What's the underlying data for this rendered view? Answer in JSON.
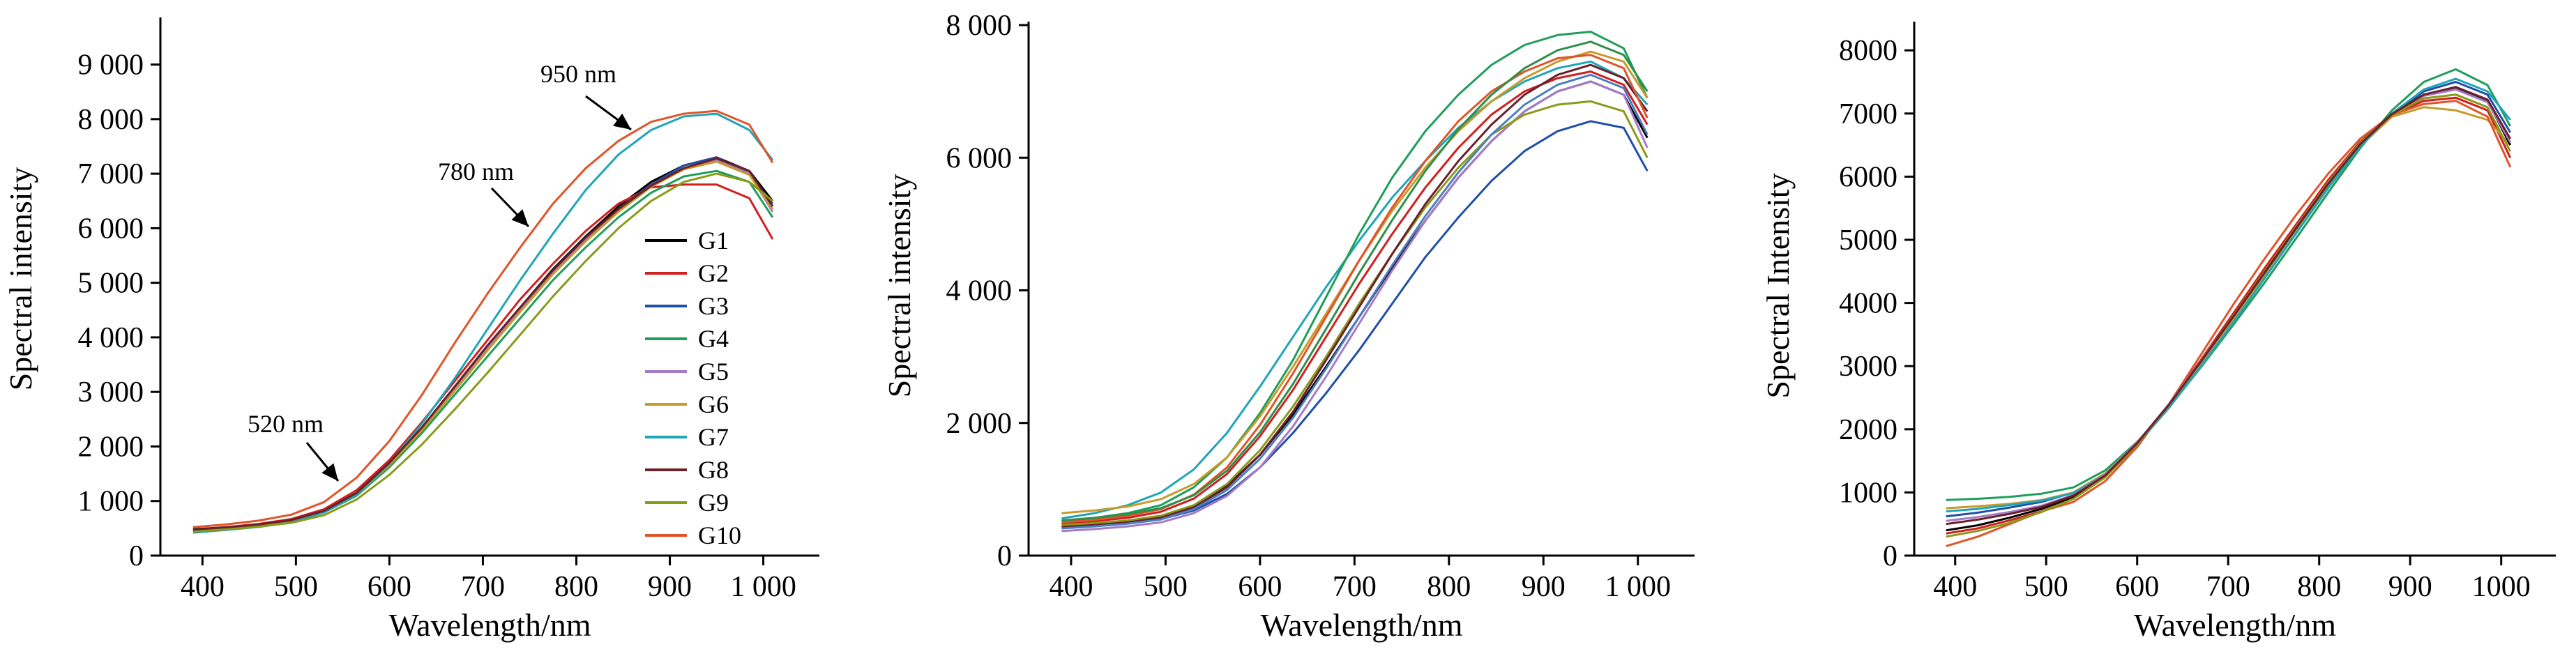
{
  "chart_data": [
    {
      "type": "line",
      "xlabel": "Wavelength/nm",
      "ylabel": "Spectral intensity",
      "xlim": [
        355,
        1060
      ],
      "ylim": [
        0,
        9800
      ],
      "x_ticks": [
        400,
        500,
        600,
        700,
        800,
        900,
        1000
      ],
      "x_tick_labels": [
        "400",
        "500",
        "600",
        "700",
        "800",
        "900",
        "1 000"
      ],
      "y_ticks": [
        0,
        1000,
        2000,
        3000,
        4000,
        5000,
        6000,
        7000,
        8000,
        9000
      ],
      "y_tick_labels": [
        "0",
        "1 000",
        "2 000",
        "3 000",
        "4 000",
        "5 000",
        "6 000",
        "7 000",
        "8 000",
        "9 000"
      ],
      "legend_position": "right",
      "grid": false,
      "annotations": [
        {
          "text": "950 nm",
          "x": 865,
          "y": 8100
        },
        {
          "text": "780 nm",
          "x": 760,
          "y": 6250
        },
        {
          "text": "520 nm",
          "x": 540,
          "y": 1350
        }
      ],
      "x": [
        390,
        425,
        460,
        495,
        530,
        565,
        600,
        635,
        670,
        705,
        740,
        775,
        810,
        845,
        880,
        915,
        950,
        985,
        1010
      ],
      "series": [
        {
          "name": "G1",
          "color": "#000000",
          "values": [
            480,
            520,
            570,
            650,
            820,
            1150,
            1700,
            2350,
            3100,
            3850,
            4550,
            5250,
            5850,
            6400,
            6850,
            7150,
            7300,
            7050,
            6500
          ]
        },
        {
          "name": "G2",
          "color": "#d11f1f",
          "values": [
            470,
            520,
            580,
            670,
            850,
            1200,
            1750,
            2450,
            3200,
            3950,
            4700,
            5350,
            5950,
            6450,
            6750,
            6800,
            6800,
            6550,
            5800
          ]
        },
        {
          "name": "G3",
          "color": "#1f4fa8",
          "values": [
            460,
            505,
            560,
            640,
            810,
            1130,
            1680,
            2330,
            3050,
            3800,
            4500,
            5200,
            5800,
            6350,
            6800,
            7150,
            7300,
            7000,
            6450
          ]
        },
        {
          "name": "G4",
          "color": "#1e9e5a",
          "values": [
            440,
            490,
            545,
            625,
            790,
            1100,
            1620,
            2250,
            2950,
            3650,
            4350,
            5050,
            5650,
            6200,
            6650,
            6950,
            7050,
            6850,
            6200
          ]
        },
        {
          "name": "G5",
          "color": "#a67bc6",
          "values": [
            460,
            505,
            565,
            645,
            820,
            1140,
            1690,
            2340,
            3060,
            3810,
            4520,
            5200,
            5800,
            6330,
            6780,
            7100,
            7250,
            7000,
            6300
          ]
        },
        {
          "name": "G6",
          "color": "#c89a2a",
          "values": [
            450,
            500,
            555,
            635,
            800,
            1120,
            1660,
            2300,
            3020,
            3760,
            4470,
            5160,
            5760,
            6300,
            6760,
            7080,
            7220,
            6980,
            6350
          ]
        },
        {
          "name": "G7",
          "color": "#1fa5b8",
          "values": [
            420,
            470,
            525,
            610,
            790,
            1120,
            1690,
            2420,
            3250,
            4150,
            5050,
            5900,
            6700,
            7350,
            7800,
            8050,
            8100,
            7800,
            7250
          ]
        },
        {
          "name": "G8",
          "color": "#6b1f2a",
          "values": [
            470,
            515,
            570,
            650,
            820,
            1150,
            1700,
            2350,
            3100,
            3850,
            4550,
            5230,
            5830,
            6350,
            6780,
            7100,
            7280,
            7050,
            6400
          ]
        },
        {
          "name": "G9",
          "color": "#8a9a1a",
          "values": [
            440,
            480,
            530,
            600,
            740,
            1030,
            1480,
            2040,
            2680,
            3350,
            4050,
            4750,
            5400,
            6000,
            6500,
            6850,
            7000,
            6850,
            6500
          ]
        },
        {
          "name": "G10",
          "color": "#e0542a",
          "values": [
            520,
            570,
            640,
            750,
            980,
            1430,
            2100,
            2950,
            3900,
            4800,
            5650,
            6450,
            7100,
            7600,
            7950,
            8100,
            8150,
            7900,
            7200
          ]
        }
      ]
    },
    {
      "type": "line",
      "xlabel": "Wavelength/nm",
      "ylabel": "Spectral intensity",
      "xlim": [
        355,
        1060
      ],
      "ylim": [
        0,
        8000
      ],
      "x_ticks": [
        400,
        500,
        600,
        700,
        800,
        900,
        1000
      ],
      "x_tick_labels": [
        "400",
        "500",
        "600",
        "700",
        "800",
        "900",
        "1 000"
      ],
      "y_ticks": [
        0,
        2000,
        4000,
        6000,
        8000
      ],
      "y_tick_labels": [
        "0",
        "2 000",
        "4 000",
        "6 000",
        "8 000"
      ],
      "grid": false,
      "x": [
        390,
        425,
        460,
        495,
        530,
        565,
        600,
        635,
        670,
        705,
        740,
        775,
        810,
        845,
        880,
        915,
        950,
        985,
        1010
      ],
      "series": [
        {
          "color": "#1fa5b8",
          "values": [
            560,
            640,
            760,
            950,
            1300,
            1850,
            2550,
            3300,
            4050,
            4750,
            5400,
            5950,
            6450,
            6850,
            7150,
            7350,
            7450,
            7200,
            6800
          ]
        },
        {
          "color": "#1e9e5a",
          "values": [
            520,
            570,
            640,
            760,
            1030,
            1480,
            2150,
            2950,
            3900,
            4850,
            5700,
            6400,
            6950,
            7400,
            7700,
            7850,
            7900,
            7650,
            6900
          ]
        },
        {
          "color": "#c89a2a",
          "values": [
            640,
            680,
            740,
            850,
            1080,
            1480,
            2100,
            2850,
            3650,
            4450,
            5200,
            5850,
            6400,
            6850,
            7200,
            7450,
            7600,
            7450,
            6900
          ]
        },
        {
          "color": "#d11f1f",
          "values": [
            480,
            520,
            570,
            660,
            860,
            1230,
            1800,
            2500,
            3300,
            4100,
            4850,
            5550,
            6150,
            6650,
            7000,
            7200,
            7300,
            7100,
            6500
          ]
        },
        {
          "color": "#1f4fa8",
          "values": [
            420,
            450,
            490,
            550,
            680,
            930,
            1330,
            1850,
            2450,
            3100,
            3800,
            4500,
            5100,
            5650,
            6100,
            6400,
            6550,
            6450,
            5800
          ]
        },
        {
          "color": "#000000",
          "values": [
            450,
            480,
            520,
            590,
            750,
            1050,
            1520,
            2130,
            2850,
            3600,
            4350,
            5050,
            5700,
            6250,
            6700,
            7000,
            7150,
            6950,
            6300
          ]
        },
        {
          "color": "#a67bc6",
          "values": [
            370,
            400,
            440,
            500,
            640,
            900,
            1330,
            1950,
            2700,
            3500,
            4300,
            5050,
            5700,
            6250,
            6700,
            7000,
            7150,
            6950,
            6150
          ]
        },
        {
          "color": "#8a9a1a",
          "values": [
            460,
            490,
            530,
            600,
            760,
            1080,
            1590,
            2250,
            3000,
            3800,
            4550,
            5250,
            5850,
            6350,
            6650,
            6800,
            6850,
            6700,
            6000
          ]
        },
        {
          "color": "#6b1f2a",
          "values": [
            430,
            460,
            500,
            570,
            730,
            1030,
            1520,
            2170,
            2950,
            3750,
            4550,
            5300,
            5950,
            6500,
            6950,
            7250,
            7400,
            7200,
            6700
          ]
        },
        {
          "color": "#e0542a",
          "values": [
            500,
            540,
            600,
            700,
            920,
            1330,
            1970,
            2750,
            3600,
            4450,
            5250,
            5950,
            6550,
            7000,
            7300,
            7500,
            7550,
            7350,
            6600
          ]
        },
        {
          "color": "#4a7fc1",
          "values": [
            410,
            440,
            480,
            545,
            700,
            990,
            1460,
            2080,
            2820,
            3600,
            4380,
            5120,
            5780,
            6350,
            6800,
            7100,
            7250,
            7050,
            6350
          ]
        },
        {
          "color": "#2f8f4a",
          "values": [
            530,
            570,
            625,
            715,
            910,
            1280,
            1860,
            2590,
            3420,
            4260,
            5060,
            5800,
            6430,
            6950,
            7350,
            7620,
            7750,
            7550,
            7000
          ]
        }
      ]
    },
    {
      "type": "line",
      "xlabel": "Wavelength/nm",
      "ylabel": "Spectral Intensity",
      "xlim": [
        355,
        1060
      ],
      "ylim": [
        0,
        8400
      ],
      "x_ticks": [
        400,
        500,
        600,
        700,
        800,
        900,
        1000
      ],
      "x_tick_labels": [
        "400",
        "500",
        "600",
        "700",
        "800",
        "900",
        "1000"
      ],
      "y_ticks": [
        0,
        1000,
        2000,
        3000,
        4000,
        5000,
        6000,
        7000,
        8000
      ],
      "y_tick_labels": [
        "0",
        "1000",
        "2000",
        "3000",
        "4000",
        "5000",
        "6000",
        "7000",
        "8000"
      ],
      "grid": false,
      "x": [
        390,
        425,
        460,
        495,
        530,
        565,
        600,
        635,
        670,
        705,
        740,
        775,
        810,
        845,
        880,
        915,
        950,
        985,
        1010
      ],
      "series": [
        {
          "color": "#1e9e5a",
          "values": [
            880,
            900,
            930,
            980,
            1080,
            1350,
            1800,
            2350,
            2980,
            3640,
            4320,
            5030,
            5750,
            6450,
            7050,
            7500,
            7700,
            7450,
            6800
          ]
        },
        {
          "color": "#d11f1f",
          "values": [
            350,
            430,
            560,
            700,
            900,
            1250,
            1780,
            2400,
            3100,
            3820,
            4550,
            5250,
            5950,
            6550,
            6980,
            7200,
            7250,
            7050,
            6300
          ]
        },
        {
          "color": "#1f4fa8",
          "values": [
            620,
            680,
            760,
            850,
            1000,
            1300,
            1780,
            2370,
            3040,
            3730,
            4440,
            5150,
            5850,
            6500,
            7000,
            7350,
            7500,
            7300,
            6700
          ]
        },
        {
          "color": "#c89a2a",
          "values": [
            750,
            780,
            820,
            880,
            1000,
            1300,
            1790,
            2380,
            3040,
            3720,
            4420,
            5130,
            5830,
            6480,
            6950,
            7100,
            7050,
            6900,
            6500
          ]
        },
        {
          "color": "#e0542a",
          "values": [
            150,
            300,
            500,
            700,
            850,
            1180,
            1720,
            2400,
            3180,
            3960,
            4700,
            5400,
            6050,
            6600,
            6980,
            7150,
            7200,
            6950,
            6150
          ]
        },
        {
          "color": "#000000",
          "values": [
            400,
            480,
            600,
            740,
            930,
            1260,
            1780,
            2390,
            3080,
            3780,
            4490,
            5200,
            5900,
            6520,
            7000,
            7300,
            7400,
            7200,
            6500
          ]
        },
        {
          "color": "#1fa5b8",
          "values": [
            700,
            740,
            800,
            870,
            990,
            1280,
            1760,
            2340,
            2990,
            3680,
            4390,
            5110,
            5820,
            6480,
            7000,
            7380,
            7550,
            7350,
            6900
          ]
        },
        {
          "color": "#a67bc6",
          "values": [
            550,
            610,
            690,
            790,
            960,
            1280,
            1790,
            2400,
            3080,
            3780,
            4490,
            5200,
            5900,
            6520,
            6990,
            7280,
            7380,
            7180,
            6550
          ]
        },
        {
          "color": "#8a9a1a",
          "values": [
            300,
            390,
            520,
            690,
            900,
            1240,
            1760,
            2380,
            3070,
            3780,
            4500,
            5210,
            5910,
            6530,
            6980,
            7240,
            7300,
            7100,
            6400
          ]
        },
        {
          "color": "#6b1f2a",
          "values": [
            500,
            570,
            660,
            770,
            950,
            1270,
            1780,
            2390,
            3070,
            3770,
            4480,
            5190,
            5890,
            6510,
            6990,
            7300,
            7420,
            7220,
            6600
          ]
        }
      ]
    }
  ]
}
